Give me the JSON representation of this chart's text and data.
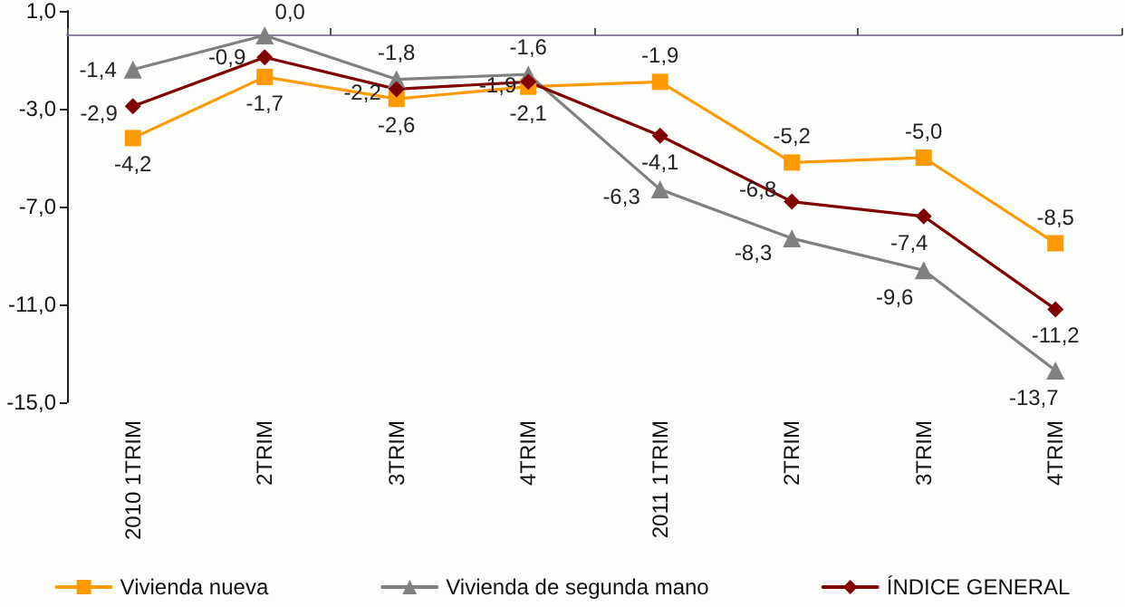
{
  "chart_data": {
    "type": "line",
    "categories": [
      "2010 1TRIM",
      "2TRIM",
      "3TRIM",
      "4TRIM",
      "2011 1TRIM",
      "2TRIM",
      "3TRIM",
      "4TRIM"
    ],
    "series": [
      {
        "name": "Vivienda nueva",
        "color": "#ff9900",
        "marker": "square",
        "values": [
          -4.2,
          -1.7,
          -2.6,
          -2.1,
          -1.9,
          -5.2,
          -5.0,
          -8.5
        ],
        "value_labels": [
          "-4,2",
          "-1,7",
          "-2,6",
          "-2,1",
          "-1,9",
          "-5,2",
          "-5,0",
          "-8,5"
        ]
      },
      {
        "name": "Vivienda de segunda mano",
        "color": "#808080",
        "marker": "triangle",
        "values": [
          -1.4,
          0.0,
          -1.8,
          -1.6,
          -6.3,
          -8.3,
          -9.6,
          -13.7
        ],
        "value_labels": [
          "-1,4",
          "0,0",
          "-1,8",
          "-1,6",
          "-6,3",
          "-8,3",
          "-9,6",
          "-13,7"
        ]
      },
      {
        "name": "ÍNDICE GENERAL",
        "color": "#800000",
        "marker": "diamond",
        "values": [
          -2.9,
          -0.9,
          -2.2,
          -1.9,
          -4.1,
          -6.8,
          -7.4,
          -11.2
        ],
        "value_labels": [
          "-2,9",
          "-0,9",
          "-2,2",
          "-1,9",
          "-4,1",
          "-6,8",
          "-7,4",
          "-11,2"
        ]
      }
    ],
    "ylim": [
      -15,
      1
    ],
    "yticks": [
      {
        "value": 1,
        "label": "1,0"
      },
      {
        "value": -3,
        "label": "-3,0"
      },
      {
        "value": -7,
        "label": "-7,0"
      },
      {
        "value": -11,
        "label": "-11,0"
      },
      {
        "value": -15,
        "label": "-15,0"
      }
    ],
    "legend": "bottom",
    "line_style": "solid"
  }
}
